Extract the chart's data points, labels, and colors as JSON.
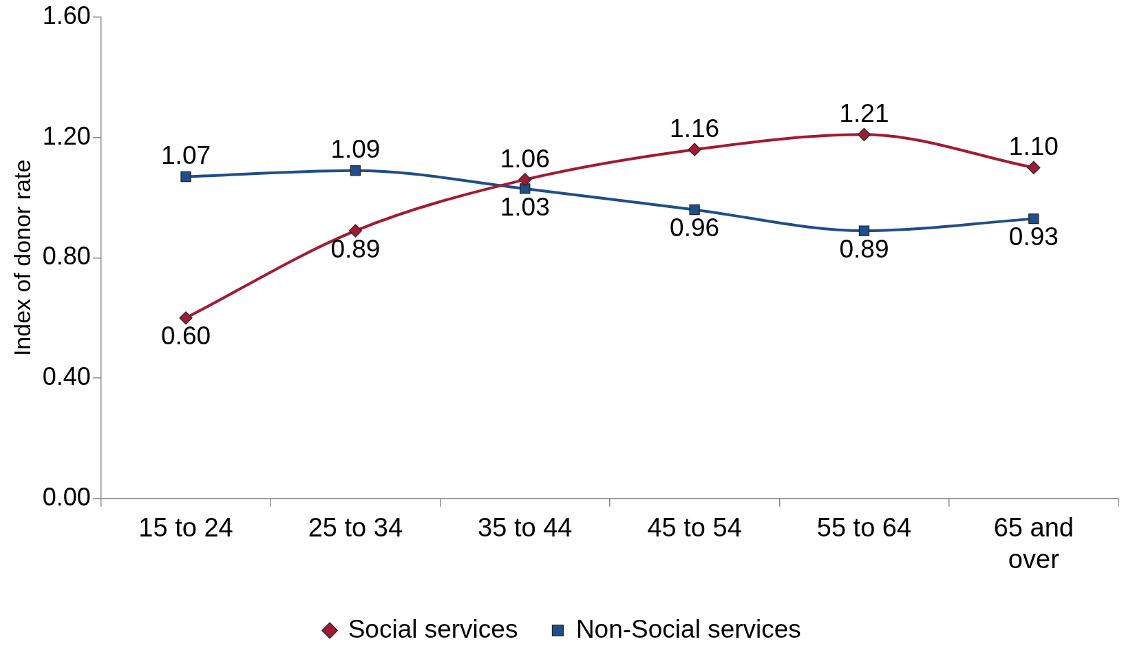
{
  "chart_data": {
    "type": "line",
    "ylabel": "Index of donor rate",
    "categories": [
      "15 to 24",
      "25 to 34",
      "35 to 44",
      "45 to 54",
      "55 to 64",
      "65 and over"
    ],
    "series": [
      {
        "name": "Social services",
        "color": "#a31a35",
        "marker": "diamond",
        "values": [
          0.6,
          0.89,
          1.06,
          1.16,
          1.21,
          1.1
        ],
        "value_labels": [
          "0.60",
          "0.89",
          "1.06",
          "1.16",
          "1.21",
          "1.10"
        ]
      },
      {
        "name": "Non-Social services",
        "color": "#1f4e8a",
        "marker": "square",
        "values": [
          1.07,
          1.09,
          1.03,
          0.96,
          0.89,
          0.93
        ],
        "value_labels": [
          "1.07",
          "1.09",
          "1.03",
          "0.96",
          "0.89",
          "0.93"
        ]
      }
    ],
    "ylim": [
      0,
      1.6
    ],
    "yticks": [
      {
        "value": 0,
        "label": "0.00"
      },
      {
        "value": 0.4,
        "label": "0.40"
      },
      {
        "value": 0.8,
        "label": "0.80"
      },
      {
        "value": 1.2,
        "label": "1.20"
      },
      {
        "value": 1.6,
        "label": "1.60"
      }
    ],
    "legend": "bottom",
    "grid": false
  }
}
